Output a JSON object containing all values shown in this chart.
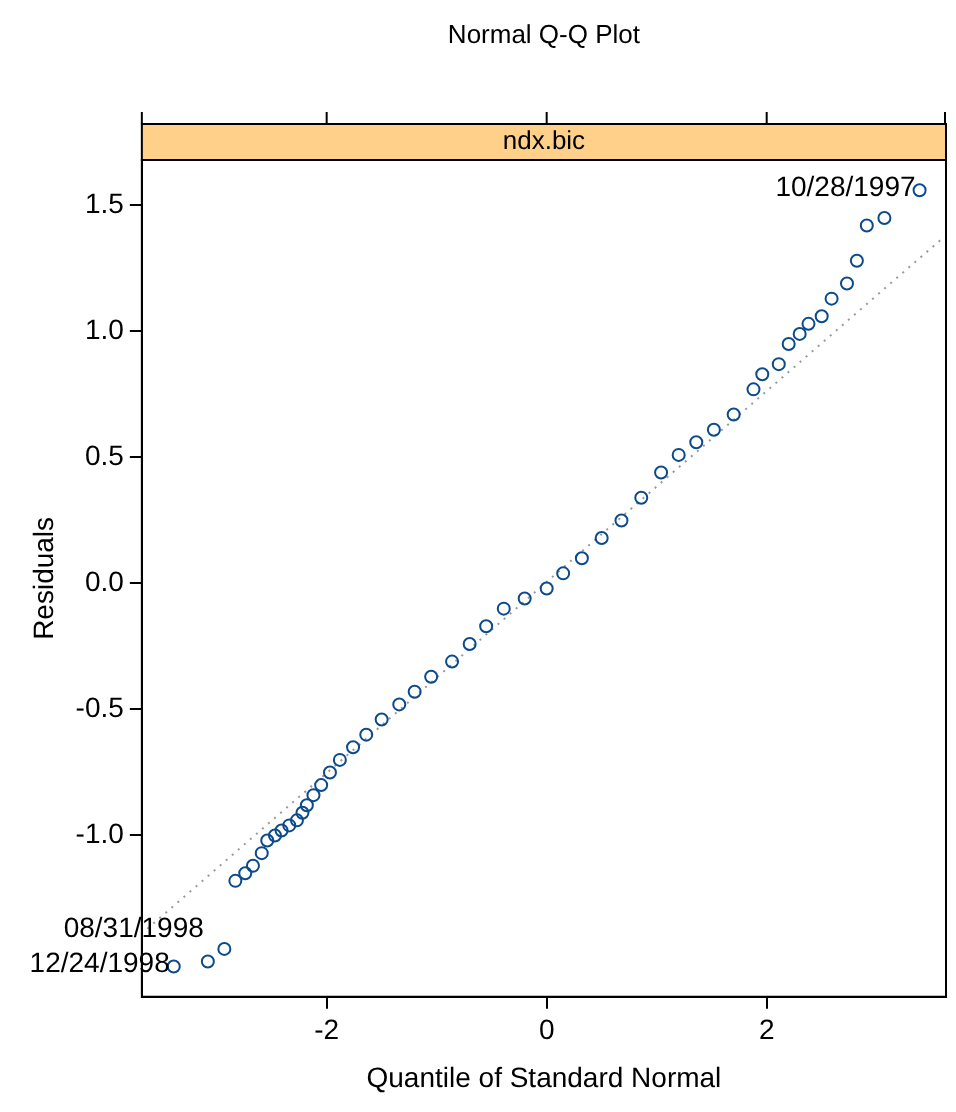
{
  "chart_data": {
    "type": "scatter",
    "title": "Normal Q-Q Plot",
    "subtitle": "ndx.bic",
    "xlabel": "Quantile of Standard Normal",
    "ylabel": "Residuals",
    "xlim": [
      -3.68,
      3.63
    ],
    "xticks": [
      -2,
      0,
      2
    ],
    "ylim": [
      -1.64,
      1.68
    ],
    "yticks": [
      {
        "value": -1,
        "label": "-1.0"
      },
      {
        "value": -0.5,
        "label": "-0.5"
      },
      {
        "value": 0,
        "label": "0.0"
      },
      {
        "value": 0.5,
        "label": "0.5"
      },
      {
        "value": 1,
        "label": "1.0"
      },
      {
        "value": 1.5,
        "label": "1.5"
      }
    ],
    "grid": false,
    "legend": false,
    "marker": "circle",
    "series": [
      {
        "type": "scatter",
        "color": "#0b4a8b",
        "x": [
          -3.39,
          -3.08,
          -2.93,
          -2.83,
          -2.74,
          -2.67,
          -2.59,
          -2.54,
          -2.47,
          -2.41,
          -2.34,
          -2.27,
          -2.22,
          -2.18,
          -2.12,
          -2.05,
          -1.97,
          -1.88,
          -1.76,
          -1.64,
          -1.5,
          -1.34,
          -1.2,
          -1.05,
          -0.86,
          -0.7,
          -0.55,
          -0.39,
          -0.2,
          0.0,
          0.15,
          0.32,
          0.5,
          0.68,
          0.86,
          1.04,
          1.2,
          1.36,
          1.52,
          1.7,
          1.88,
          1.96,
          2.11,
          2.2,
          2.3,
          2.38,
          2.5,
          2.59,
          2.73,
          2.82,
          2.91,
          3.07,
          3.39
        ],
        "values": [
          -1.52,
          -1.5,
          -1.45,
          -1.18,
          -1.15,
          -1.12,
          -1.07,
          -1.02,
          -1.0,
          -0.98,
          -0.96,
          -0.94,
          -0.91,
          -0.88,
          -0.84,
          -0.8,
          -0.75,
          -0.7,
          -0.65,
          -0.6,
          -0.54,
          -0.48,
          -0.43,
          -0.37,
          -0.31,
          -0.24,
          -0.17,
          -0.1,
          -0.06,
          -0.02,
          0.04,
          0.1,
          0.18,
          0.25,
          0.34,
          0.44,
          0.51,
          0.56,
          0.61,
          0.67,
          0.77,
          0.83,
          0.87,
          0.95,
          0.99,
          1.03,
          1.06,
          1.13,
          1.19,
          1.28,
          1.42,
          1.45,
          1.56
        ]
      },
      {
        "type": "line",
        "color": "#999999",
        "line_style": "dotted",
        "marker": "none",
        "x": [
          -3.63,
          3.6
        ],
        "values": [
          -1.37,
          1.37
        ]
      }
    ],
    "annotations": [
      {
        "text": "10/28/1997",
        "x": 3.39,
        "y": 1.56
      },
      {
        "text": "12/24/1998",
        "x": -3.39,
        "y": -1.52
      },
      {
        "text": "08/31/1998",
        "x": -3.08,
        "y": -1.5
      }
    ]
  }
}
